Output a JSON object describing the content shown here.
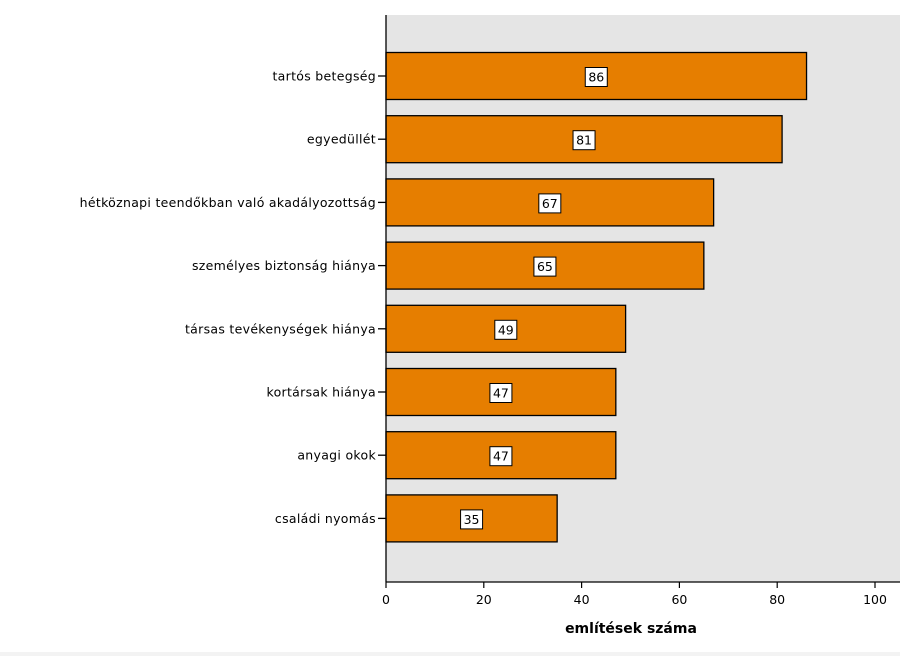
{
  "chart_data": {
    "type": "bar",
    "orientation": "horizontal",
    "title": "",
    "xlabel": "említések száma",
    "ylabel": "",
    "categories": [
      "tartós betegség",
      "egyedüllét",
      "hétköznapi teendőkban való akadályozottság",
      "személyes biztonság hiánya",
      "társas tevékenységek hiánya",
      "kortársak hiánya",
      "anyagi okok",
      "családi nyomás"
    ],
    "values": [
      86,
      81,
      67,
      65,
      49,
      47,
      47,
      35
    ],
    "data_labels": [
      "86",
      "81",
      "67",
      "65",
      "49",
      "47",
      "47",
      "35"
    ],
    "xlim": [
      0,
      100
    ],
    "x_ticks": [
      0,
      20,
      40,
      60,
      80,
      100
    ],
    "x_tick_labels": [
      "0",
      "20",
      "40",
      "60",
      "80",
      "100"
    ],
    "grid": false,
    "colors": {
      "bar_fill": "#e67e00",
      "bar_stroke": "#000000",
      "plot_background": "#e5e5e5",
      "page_background": "#ffffff"
    }
  }
}
